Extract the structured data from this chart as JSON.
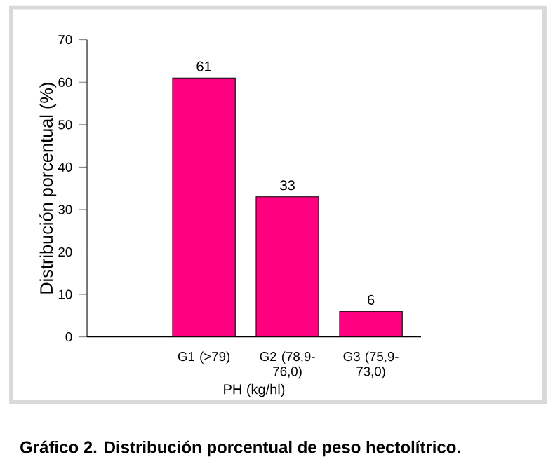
{
  "chart_data": {
    "type": "bar",
    "title": "Gráfico 2. Distribución porcentual de peso hectolítrico.",
    "xlabel": "PH (kg/hl)",
    "ylabel": "Distribución porcentual (%)",
    "categories": [
      "G1 (>79)",
      "G2 (78,9-76,0)",
      "G3 (75,9-73,0)"
    ],
    "values": [
      61,
      33,
      6
    ],
    "color": "#ff0080",
    "ylim": [
      0,
      70
    ],
    "yticks": [
      0,
      10,
      20,
      30,
      40,
      50,
      60,
      70
    ],
    "data_labels": true
  }
}
